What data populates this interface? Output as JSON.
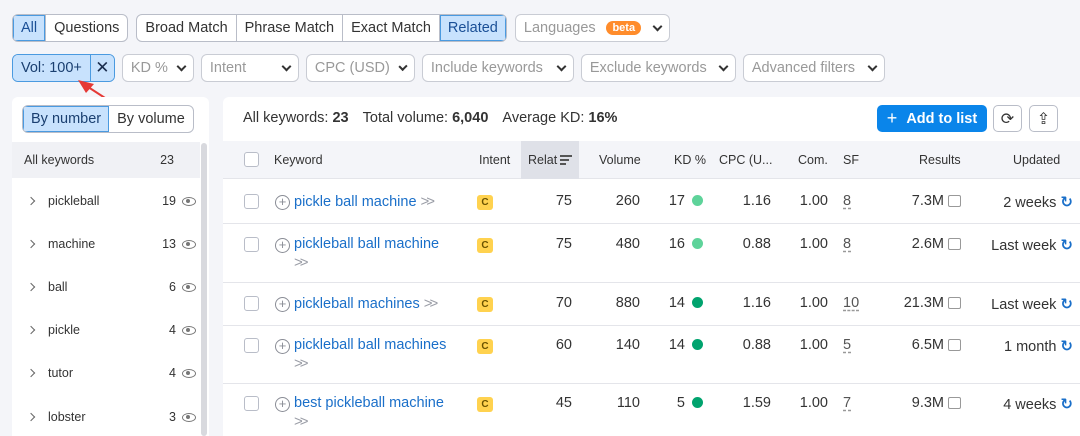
{
  "match_tabs": [
    "All",
    "Questions"
  ],
  "match_types": [
    "Broad Match",
    "Phrase Match",
    "Exact Match",
    "Related"
  ],
  "languages": {
    "label": "Languages",
    "badge": "beta"
  },
  "filters": {
    "vol_chip": "Vol: 100+",
    "vol_clear": "✕",
    "kd": "KD %",
    "intent": "Intent",
    "cpc": "CPC (USD)",
    "include": "Include keywords",
    "exclude": "Exclude keywords",
    "advanced": "Advanced filters"
  },
  "sidebar": {
    "by_number": "By number",
    "by_volume": "By volume",
    "all_label": "All keywords",
    "all_count": "23",
    "groups": [
      {
        "name": "pickleball",
        "count": "19"
      },
      {
        "name": "machine",
        "count": "13"
      },
      {
        "name": "ball",
        "count": "6"
      },
      {
        "name": "pickle",
        "count": "4"
      },
      {
        "name": "tutor",
        "count": "4"
      },
      {
        "name": "lobster",
        "count": "3"
      }
    ]
  },
  "summary": {
    "all_label": "All keywords:",
    "all_value": "23",
    "vol_label": "Total volume:",
    "vol_value": "6,040",
    "kd_label": "Average KD:",
    "kd_value": "16%"
  },
  "toolbar": {
    "add_label": "Add to list",
    "add_icon": "+",
    "refresh_icon": "⟳",
    "export_icon": "⇪"
  },
  "columns": {
    "keyword": "Keyword",
    "intent": "Intent",
    "related": "Relat",
    "volume": "Volume",
    "kd": "KD %",
    "cpc": "CPC (U...",
    "com": "Com.",
    "sf": "SF",
    "results": "Results",
    "updated": "Updated"
  },
  "colors": {
    "kd_easy": "#5ed39a",
    "kd_mid": "#00a36e",
    "accent": "#0a85ea"
  },
  "rows": [
    {
      "keyword": "pickle ball machine",
      "intent": "C",
      "related": "75",
      "volume": "260",
      "kd": "17",
      "kd_level": "kd_easy",
      "cpc": "1.16",
      "com": "1.00",
      "sf": "8",
      "results": "7.3M",
      "updated": "2 weeks"
    },
    {
      "keyword": "pickleball ball machine",
      "intent": "C",
      "related": "75",
      "volume": "480",
      "kd": "16",
      "kd_level": "kd_easy",
      "cpc": "0.88",
      "com": "1.00",
      "sf": "8",
      "results": "2.6M",
      "updated": "Last week"
    },
    {
      "keyword": "pickleball machines",
      "intent": "C",
      "related": "70",
      "volume": "880",
      "kd": "14",
      "kd_level": "kd_mid",
      "cpc": "1.16",
      "com": "1.00",
      "sf": "10",
      "results": "21.3M",
      "updated": "Last week"
    },
    {
      "keyword": "pickleball ball machines",
      "intent": "C",
      "related": "60",
      "volume": "140",
      "kd": "14",
      "kd_level": "kd_mid",
      "cpc": "0.88",
      "com": "1.00",
      "sf": "5",
      "results": "6.5M",
      "updated": "1 month"
    },
    {
      "keyword": "best pickleball machine",
      "intent": "C",
      "related": "45",
      "volume": "110",
      "kd": "5",
      "kd_level": "kd_mid",
      "cpc": "1.59",
      "com": "1.00",
      "sf": "7",
      "results": "9.3M",
      "updated": "4 weeks"
    }
  ]
}
